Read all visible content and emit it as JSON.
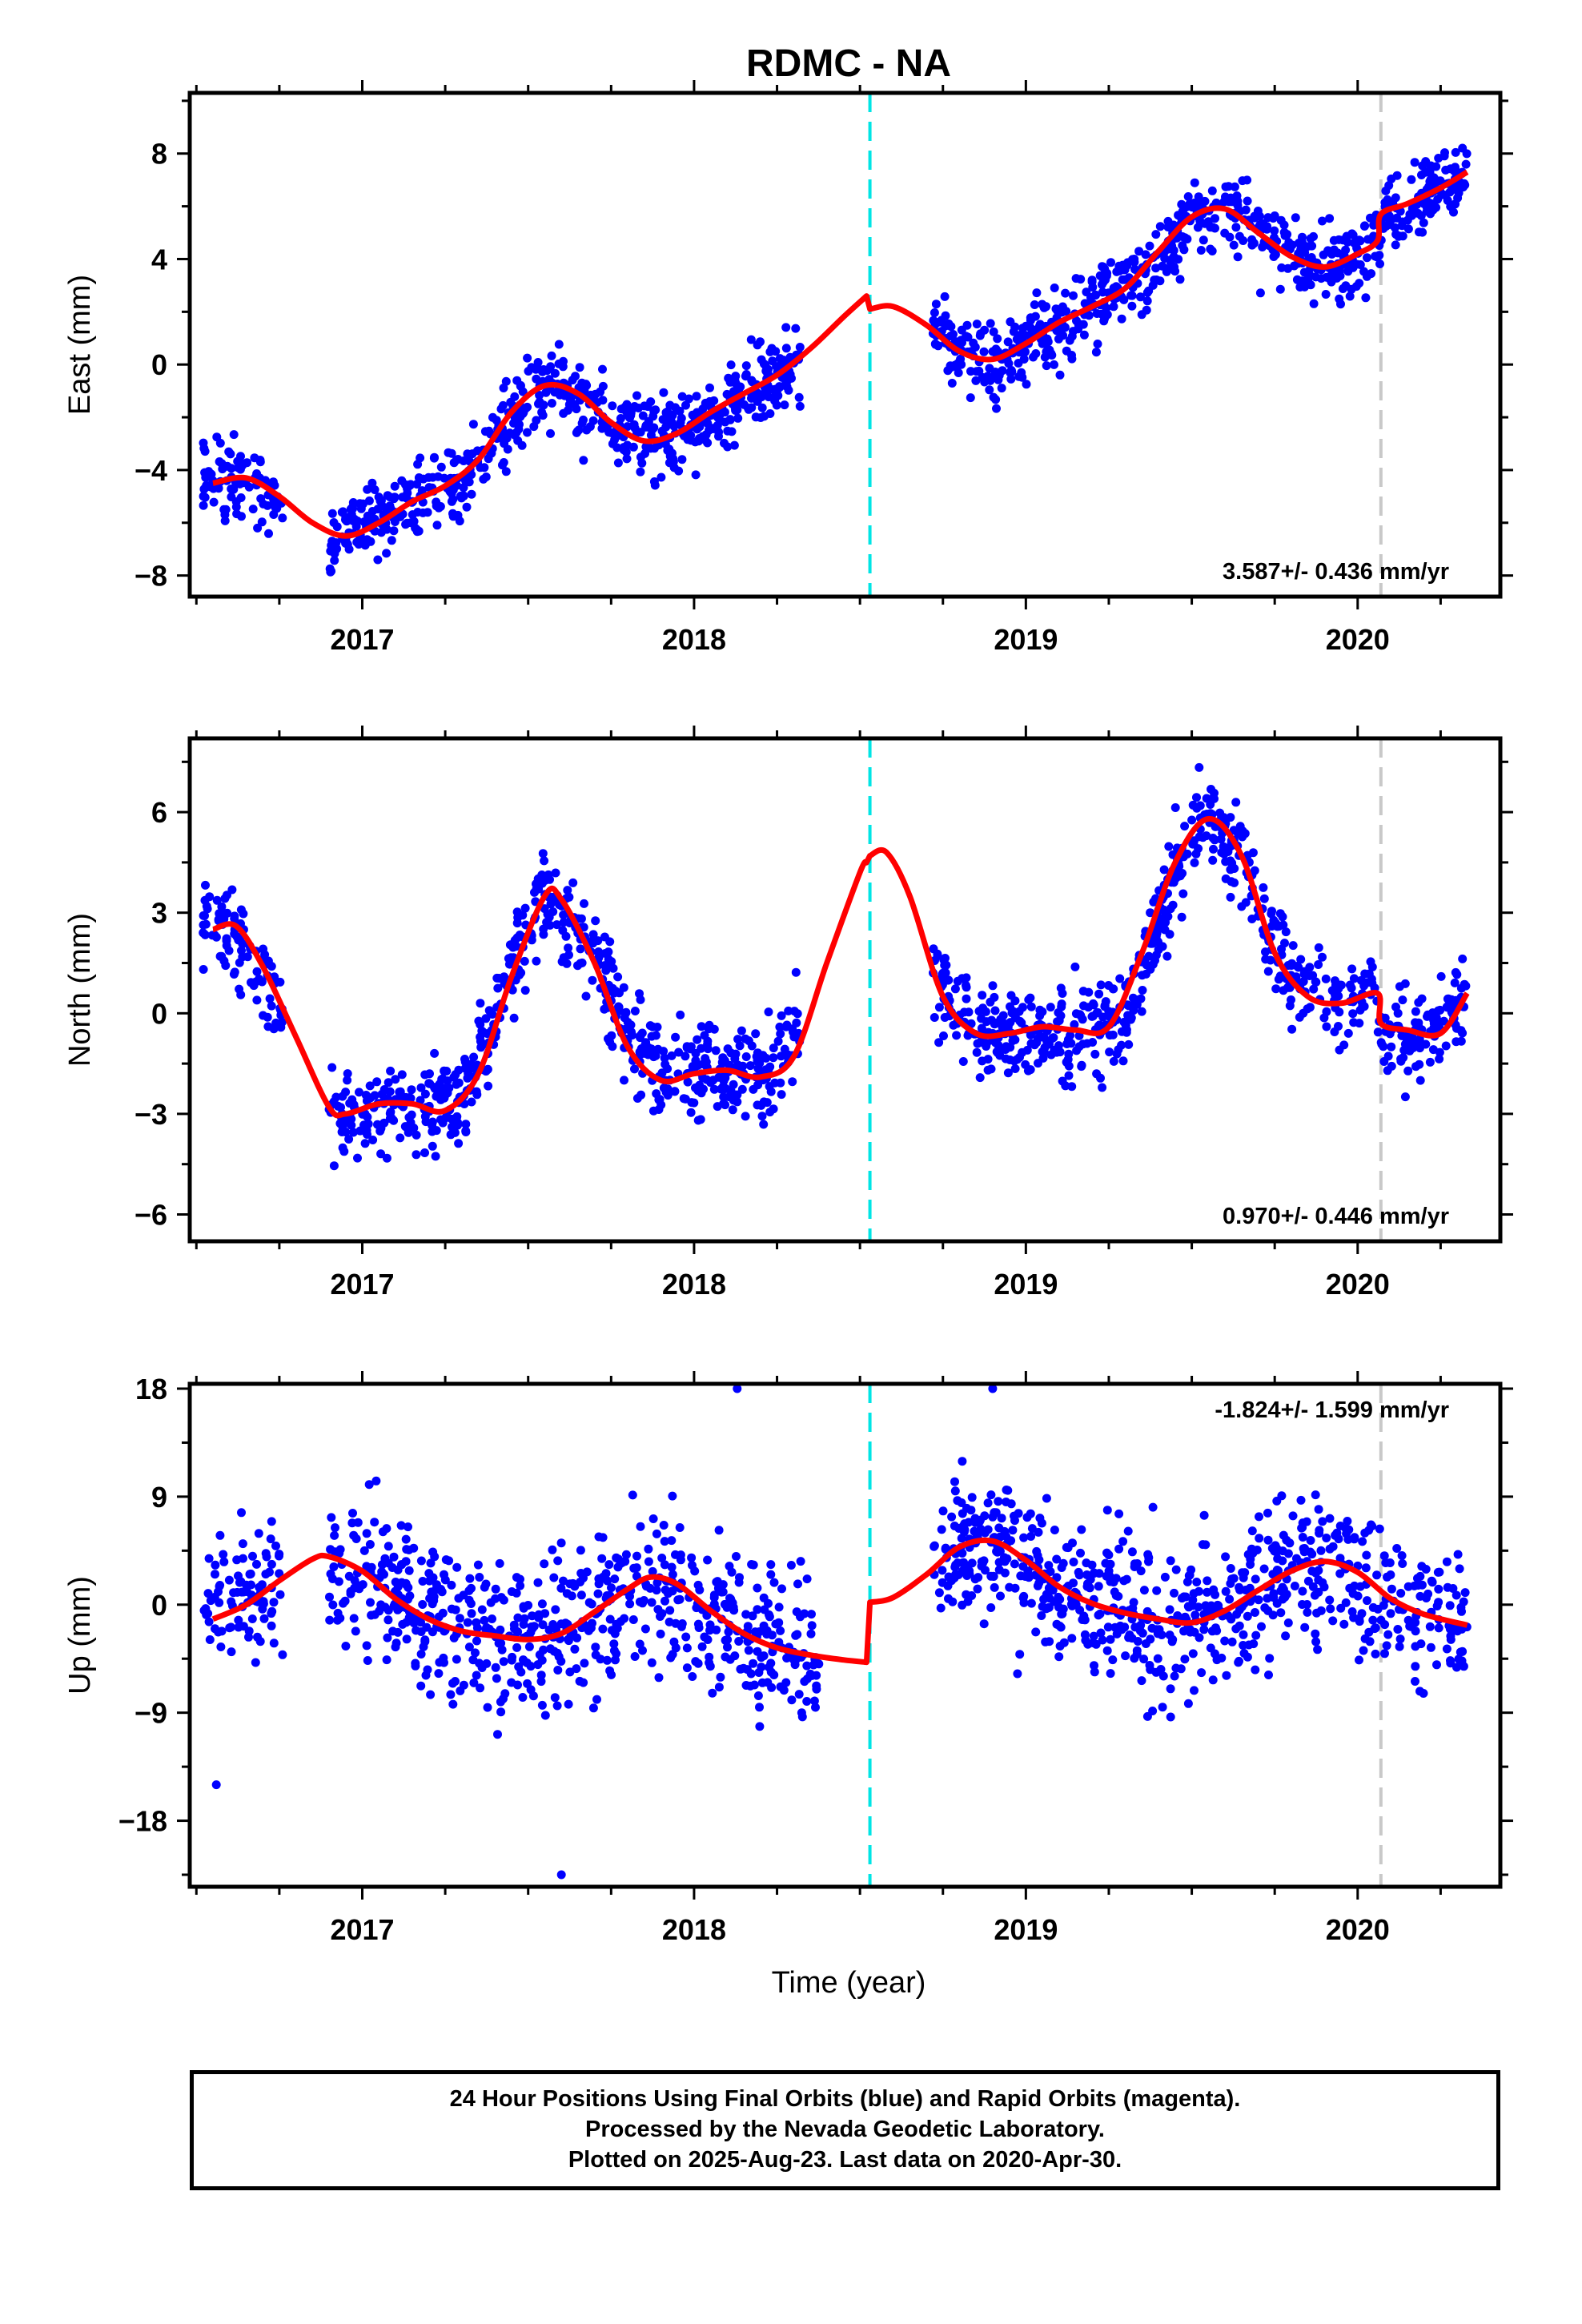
{
  "title": "RDMC - NA",
  "xlabel": "Time (year)",
  "footer": {
    "line1": "24 Hour Positions Using Final Orbits (blue) and Rapid Orbits (magenta).",
    "line2": "Processed by the Nevada Geodetic Laboratory.",
    "line3": "Plotted on 2025-Aug-23. Last data on 2020-Apr-30."
  },
  "colors": {
    "final_orbits": "#0000ff",
    "model_fit": "#ff0000",
    "equipment_change": "#00e5e5",
    "other_event": "#c8c8c8",
    "frame": "#000000"
  },
  "chart_data": [
    {
      "type": "scatter",
      "panel": "east",
      "ylabel": "East (mm)",
      "rate": "3.587+/- 0.436 mm/yr",
      "rate_position": "bottom-right",
      "xlim": [
        2016.48,
        2020.43
      ],
      "ylim": [
        -8.8,
        10.3
      ],
      "xticks": [
        "2017",
        "2018",
        "2019",
        "2020"
      ],
      "yticks": [
        -8,
        -4,
        0,
        4,
        8
      ],
      "event_lines": [
        {
          "x": 2018.53,
          "color": "cyan",
          "style": "dashed"
        },
        {
          "x": 2020.07,
          "color": "gray",
          "style": "dashed"
        }
      ],
      "series": [
        {
          "x": [
            2016.55,
            2016.65,
            2016.75,
            2016.85,
            2016.95,
            2017.05,
            2017.15,
            2017.25,
            2017.35,
            2017.45,
            2017.55,
            2017.65,
            2017.75,
            2017.85,
            2017.95,
            2018.05,
            2018.15,
            2018.25,
            2018.35,
            2018.45,
            2018.52
          ],
          "y": [
            -4.5,
            -4.3,
            -5.0,
            -6.0,
            -6.5,
            -6.0,
            -5.2,
            -4.6,
            -3.6,
            -1.8,
            -0.8,
            -1.1,
            -2.2,
            -2.9,
            -2.6,
            -1.8,
            -1.1,
            -0.4,
            0.6,
            1.8,
            2.6
          ]
        },
        {
          "x": [
            2018.53,
            2018.6,
            2018.7,
            2018.8,
            2018.9,
            2019.0,
            2019.1,
            2019.2,
            2019.3,
            2019.4,
            2019.5,
            2019.6,
            2019.7,
            2019.8,
            2019.9,
            2020.0,
            2020.06,
            2020.07,
            2020.15,
            2020.25,
            2020.33
          ],
          "y": [
            2.1,
            2.2,
            1.5,
            0.5,
            0.2,
            0.8,
            1.6,
            2.2,
            2.9,
            4.3,
            5.6,
            5.9,
            5.0,
            4.1,
            3.7,
            4.2,
            4.7,
            5.7,
            6.1,
            6.7,
            7.3
          ]
        }
      ],
      "points": {
        "segments": [
          {
            "x0": 2016.52,
            "x1": 2016.76,
            "n": 90,
            "trend": [
              [
                2016.52,
                -4.4
              ],
              [
                2016.64,
                -4.6
              ],
              [
                2016.76,
                -5.3
              ]
            ],
            "sd": 1.15
          },
          {
            "x0": 2016.9,
            "x1": 2018.32,
            "n": 620,
            "trend": [
              [
                2016.9,
                -6.6
              ],
              [
                2017.0,
                -6.1
              ],
              [
                2017.15,
                -5.1
              ],
              [
                2017.3,
                -4.2
              ],
              [
                2017.45,
                -1.9
              ],
              [
                2017.55,
                -0.8
              ],
              [
                2017.65,
                -1.2
              ],
              [
                2017.8,
                -2.6
              ],
              [
                2017.9,
                -2.9
              ],
              [
                2018.0,
                -2.4
              ],
              [
                2018.15,
                -1.2
              ],
              [
                2018.32,
                0.1
              ]
            ],
            "sd": 1.05
          },
          {
            "x0": 2018.72,
            "x1": 2020.33,
            "n": 700,
            "trend": [
              [
                2018.72,
                1.2
              ],
              [
                2018.9,
                0.2
              ],
              [
                2019.0,
                0.7
              ],
              [
                2019.2,
                2.2
              ],
              [
                2019.35,
                3.3
              ],
              [
                2019.5,
                5.6
              ],
              [
                2019.6,
                5.9
              ],
              [
                2019.75,
                4.6
              ],
              [
                2019.85,
                3.8
              ],
              [
                2019.95,
                3.9
              ],
              [
                2020.06,
                4.6
              ],
              [
                2020.08,
                5.7
              ],
              [
                2020.2,
                6.4
              ],
              [
                2020.33,
                7.4
              ]
            ],
            "sd": 1.0
          }
        ]
      }
    },
    {
      "type": "scatter",
      "panel": "north",
      "ylabel": "North (mm)",
      "rate": "0.970+/- 0.446 mm/yr",
      "rate_position": "bottom-right",
      "xlim": [
        2016.48,
        2020.43
      ],
      "ylim": [
        -6.8,
        8.2
      ],
      "xticks": [
        "2017",
        "2018",
        "2019",
        "2020"
      ],
      "yticks": [
        -6,
        -3,
        0,
        3,
        6
      ],
      "event_lines": [
        {
          "x": 2018.53,
          "color": "cyan",
          "style": "dashed"
        },
        {
          "x": 2020.07,
          "color": "gray",
          "style": "dashed"
        }
      ],
      "series": [
        {
          "x": [
            2016.55,
            2016.62,
            2016.7,
            2016.8,
            2016.9,
            2016.95,
            2017.05,
            2017.15,
            2017.25,
            2017.35,
            2017.45,
            2017.55,
            2017.6,
            2017.7,
            2017.8,
            2017.9,
            2018.0,
            2018.1,
            2018.2,
            2018.3,
            2018.4,
            2018.5,
            2018.52
          ],
          "y": [
            2.5,
            2.6,
            1.4,
            -0.7,
            -2.8,
            -3.0,
            -2.7,
            -2.7,
            -2.9,
            -1.8,
            1.1,
            3.5,
            3.4,
            1.5,
            -1.0,
            -2.0,
            -1.8,
            -1.7,
            -1.9,
            -1.3,
            1.5,
            4.2,
            4.5
          ]
        },
        {
          "x": [
            2018.53,
            2018.58,
            2018.65,
            2018.75,
            2018.85,
            2018.95,
            2019.05,
            2019.15,
            2019.25,
            2019.35,
            2019.45,
            2019.55,
            2019.65,
            2019.75,
            2019.85,
            2019.95,
            2020.06,
            2020.07,
            2020.15,
            2020.25,
            2020.33
          ],
          "y": [
            4.7,
            4.8,
            3.5,
            0.5,
            -0.6,
            -0.6,
            -0.4,
            -0.5,
            -0.4,
            1.8,
            4.5,
            5.8,
            4.7,
            1.8,
            0.5,
            0.3,
            0.6,
            -0.3,
            -0.5,
            -0.6,
            0.6
          ]
        }
      ],
      "points": {
        "segments": [
          {
            "x0": 2016.52,
            "x1": 2016.76,
            "n": 90,
            "trend": [
              [
                2016.52,
                2.7
              ],
              [
                2016.6,
                2.5
              ],
              [
                2016.7,
                1.3
              ],
              [
                2016.76,
                0.1
              ]
            ],
            "sd": 0.95
          },
          {
            "x0": 2016.9,
            "x1": 2018.32,
            "n": 620,
            "trend": [
              [
                2016.9,
                -2.8
              ],
              [
                2017.0,
                -2.9
              ],
              [
                2017.2,
                -2.7
              ],
              [
                2017.3,
                -2.5
              ],
              [
                2017.42,
                0.4
              ],
              [
                2017.55,
                3.6
              ],
              [
                2017.65,
                2.5
              ],
              [
                2017.8,
                -0.5
              ],
              [
                2017.9,
                -1.8
              ],
              [
                2018.1,
                -1.7
              ],
              [
                2018.22,
                -1.8
              ],
              [
                2018.32,
                -0.2
              ]
            ],
            "sd": 0.95
          },
          {
            "x0": 2018.72,
            "x1": 2020.33,
            "n": 700,
            "trend": [
              [
                2018.72,
                1.4
              ],
              [
                2018.82,
                -0.4
              ],
              [
                2019.0,
                -0.6
              ],
              [
                2019.2,
                -0.5
              ],
              [
                2019.3,
                -0.2
              ],
              [
                2019.45,
                4.2
              ],
              [
                2019.55,
                5.6
              ],
              [
                2019.65,
                4.8
              ],
              [
                2019.75,
                1.8
              ],
              [
                2019.9,
                0.4
              ],
              [
                2020.05,
                0.5
              ],
              [
                2020.08,
                -0.4
              ],
              [
                2020.2,
                -0.6
              ],
              [
                2020.33,
                0.5
              ]
            ],
            "sd": 0.95
          }
        ]
      }
    },
    {
      "type": "scatter",
      "panel": "up",
      "ylabel": "Up (mm)",
      "rate": "-1.824+/- 1.599 mm/yr",
      "rate_position": "top-right",
      "xlim": [
        2016.48,
        2020.43
      ],
      "ylim": [
        -23.5,
        18.4
      ],
      "xticks": [
        "2017",
        "2018",
        "2019",
        "2020"
      ],
      "yticks": [
        -18,
        -9,
        0,
        9,
        18
      ],
      "event_lines": [
        {
          "x": 2018.53,
          "color": "cyan",
          "style": "dashed"
        },
        {
          "x": 2020.07,
          "color": "gray",
          "style": "dashed"
        }
      ],
      "series": [
        {
          "x": [
            2016.55,
            2016.65,
            2016.75,
            2016.85,
            2016.9,
            2017.0,
            2017.1,
            2017.2,
            2017.3,
            2017.4,
            2017.5,
            2017.6,
            2017.7,
            2017.8,
            2017.87,
            2017.95,
            2018.05,
            2018.15,
            2018.25,
            2018.35,
            2018.45,
            2018.52
          ],
          "y": [
            -1.2,
            0.0,
            2.0,
            3.8,
            4.0,
            2.8,
            0.5,
            -1.2,
            -2.2,
            -2.6,
            -2.9,
            -2.4,
            -0.6,
            1.3,
            2.3,
            1.7,
            -0.5,
            -2.4,
            -3.6,
            -4.2,
            -4.6,
            -4.8
          ]
        },
        {
          "x": [
            2018.53,
            2018.6,
            2018.7,
            2018.8,
            2018.9,
            2019.0,
            2019.1,
            2019.2,
            2019.3,
            2019.4,
            2019.5,
            2019.6,
            2019.7,
            2019.8,
            2019.9,
            2020.0,
            2020.1,
            2020.2,
            2020.33
          ],
          "y": [
            0.2,
            0.6,
            2.5,
            4.8,
            5.3,
            3.7,
            1.5,
            0.1,
            -0.7,
            -1.2,
            -1.5,
            -0.5,
            1.2,
            2.8,
            3.6,
            2.7,
            0.5,
            -0.8,
            -1.7
          ]
        }
      ],
      "points": {
        "segments": [
          {
            "x0": 2016.52,
            "x1": 2016.76,
            "n": 90,
            "trend": [
              [
                2016.52,
                -1.0
              ],
              [
                2016.64,
                0.8
              ],
              [
                2016.76,
                2.6
              ]
            ],
            "sd": 4.2
          },
          {
            "x0": 2016.9,
            "x1": 2018.38,
            "n": 640,
            "trend": [
              [
                2016.9,
                4.0
              ],
              [
                2017.1,
                0.5
              ],
              [
                2017.3,
                -2.2
              ],
              [
                2017.5,
                -2.9
              ],
              [
                2017.7,
                -0.6
              ],
              [
                2017.87,
                2.3
              ],
              [
                2018.05,
                -0.5
              ],
              [
                2018.25,
                -3.6
              ],
              [
                2018.38,
                -4.4
              ]
            ],
            "sd": 4.3
          },
          {
            "x0": 2018.72,
            "x1": 2020.33,
            "n": 700,
            "trend": [
              [
                2018.72,
                3.2
              ],
              [
                2018.9,
                5.3
              ],
              [
                2019.1,
                1.5
              ],
              [
                2019.3,
                -0.7
              ],
              [
                2019.5,
                -1.5
              ],
              [
                2019.7,
                1.2
              ],
              [
                2019.9,
                3.6
              ],
              [
                2020.1,
                0.5
              ],
              [
                2020.33,
                -1.7
              ]
            ],
            "sd": 4.3
          }
        ],
        "outliers": [
          [
            2016.56,
            -15.0
          ],
          [
            2017.6,
            -22.5
          ],
          [
            2018.13,
            18.0
          ],
          [
            2018.9,
            18.0
          ]
        ]
      }
    }
  ]
}
